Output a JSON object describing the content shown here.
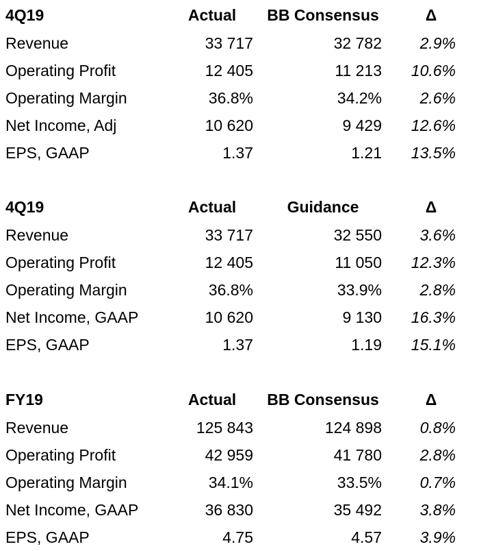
{
  "tables": [
    {
      "header": [
        "4Q19",
        "Actual",
        "BB Consensus",
        "Δ"
      ],
      "rows": [
        [
          "Revenue",
          "33 717",
          "32 782",
          "2.9%"
        ],
        [
          "Operating Profit",
          "12 405",
          "11 213",
          "10.6%"
        ],
        [
          "Operating Margin",
          "36.8%",
          "34.2%",
          "2.6%"
        ],
        [
          "Net Income, Adj",
          "10 620",
          "9 429",
          "12.6%"
        ],
        [
          "EPS, GAAP",
          "1.37",
          "1.21",
          "13.5%"
        ]
      ]
    },
    {
      "header": [
        "4Q19",
        "Actual",
        "Guidance",
        "Δ"
      ],
      "rows": [
        [
          "Revenue",
          "33 717",
          "32 550",
          "3.6%"
        ],
        [
          "Operating Profit",
          "12 405",
          "11 050",
          "12.3%"
        ],
        [
          "Operating Margin",
          "36.8%",
          "33.9%",
          "2.8%"
        ],
        [
          "Net Income, GAAP",
          "10 620",
          "9 130",
          "16.3%"
        ],
        [
          "EPS, GAAP",
          "1.37",
          "1.19",
          "15.1%"
        ]
      ]
    },
    {
      "header": [
        "FY19",
        "Actual",
        "BB Consensus",
        "Δ"
      ],
      "rows": [
        [
          "Revenue",
          "125 843",
          "124 898",
          "0.8%"
        ],
        [
          "Operating Profit",
          "42 959",
          "41 780",
          "2.8%"
        ],
        [
          "Operating Margin",
          "34.1%",
          "33.5%",
          "0.7%"
        ],
        [
          "Net Income, GAAP",
          "36 830",
          "35 492",
          "3.8%"
        ],
        [
          "EPS, GAAP",
          "4.75",
          "4.57",
          "3.9%"
        ]
      ]
    }
  ]
}
